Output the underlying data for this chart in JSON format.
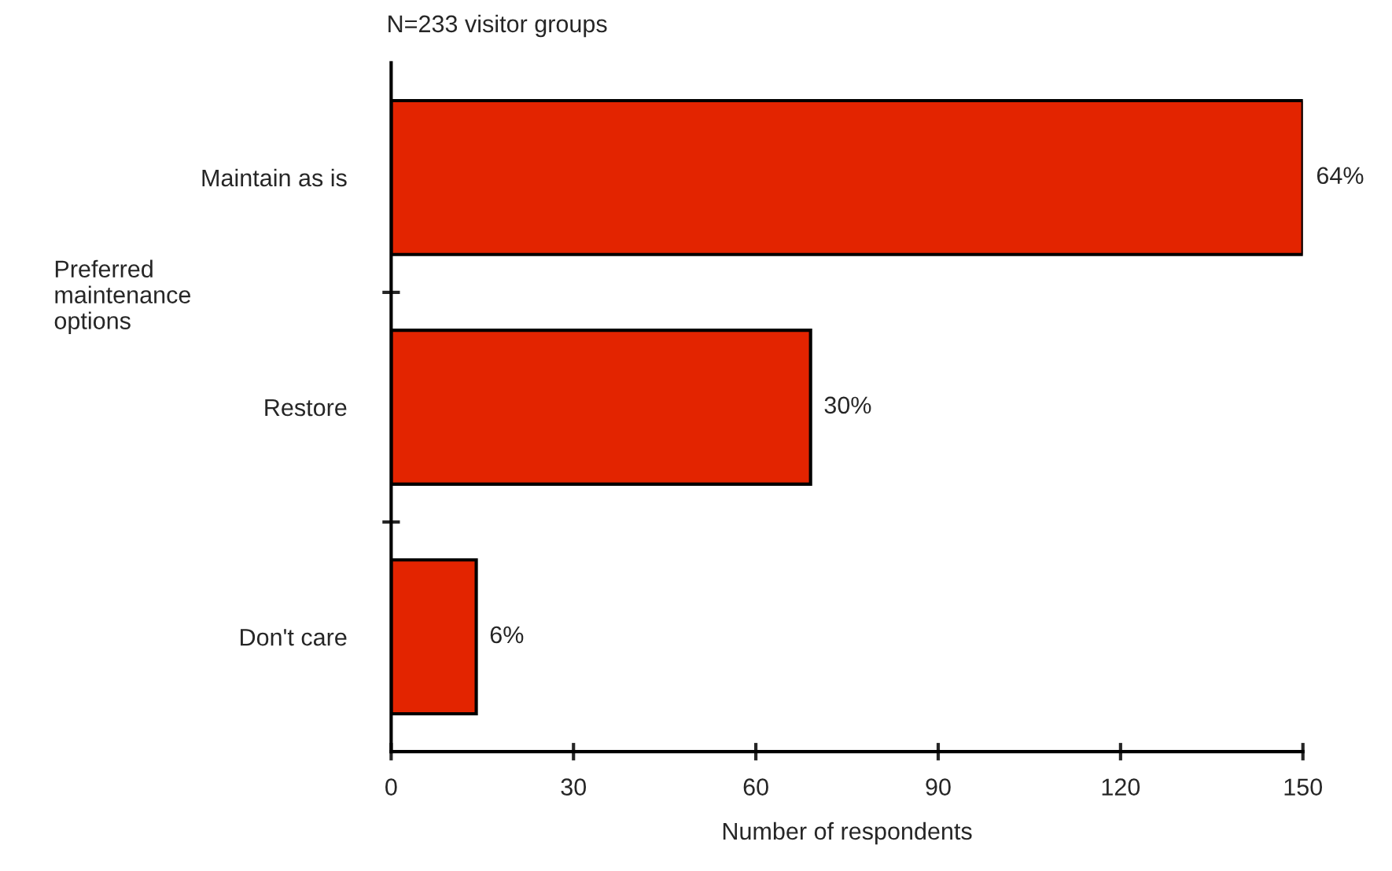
{
  "chart_data": {
    "type": "bar",
    "orientation": "horizontal",
    "title": "N=233 visitor groups",
    "xlabel": "Number of respondents",
    "ylabel": "Preferred\nmaintenance\noptions",
    "categories": [
      "Maintain as is",
      "Restore",
      "Don't care"
    ],
    "values": [
      150,
      69,
      14
    ],
    "color": "#e32400",
    "annotations": [
      {
        "text": "64%",
        "x": 150,
        "y": "Maintain as is"
      },
      {
        "text": "30%",
        "x": 69,
        "y": "Restore"
      },
      {
        "text": "6%",
        "x": 14,
        "y": "Don't care"
      }
    ],
    "xlim": [
      0,
      150
    ],
    "xticks": [
      0,
      30,
      60,
      90,
      120,
      150
    ],
    "grid": false,
    "legend": false
  }
}
